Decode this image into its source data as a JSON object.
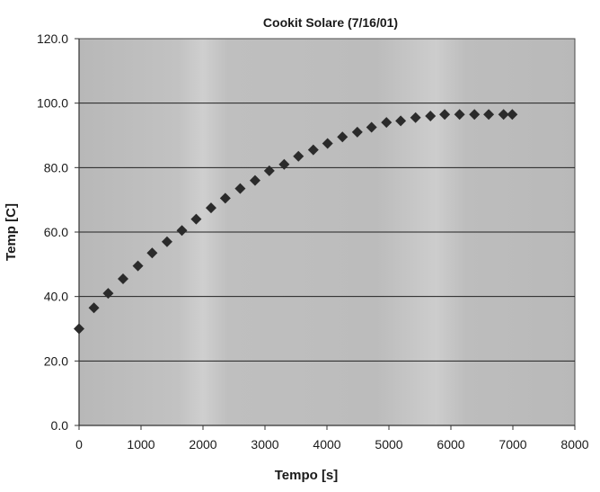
{
  "chart_data": {
    "type": "scatter",
    "title": "Cookit Solare (7/16/01)",
    "xlabel": "Tempo [s]",
    "ylabel": "Temp [C]",
    "xlim": [
      0,
      8000
    ],
    "ylim": [
      0,
      120
    ],
    "x_ticks": [
      0,
      1000,
      2000,
      3000,
      4000,
      5000,
      6000,
      7000,
      8000
    ],
    "y_ticks": [
      "0.0",
      "20.0",
      "40.0",
      "60.0",
      "80.0",
      "100.0",
      "120.0"
    ],
    "grid": "horizontal",
    "legend": "none",
    "marker": "diamond",
    "colors": {
      "plot_background": "#bdbdbd",
      "marker": "#2b2b2b",
      "gridline": "#222222",
      "axis": "#333333"
    },
    "points": [
      {
        "x": 0,
        "y": 30.0
      },
      {
        "x": 240,
        "y": 36.5
      },
      {
        "x": 470,
        "y": 41.0
      },
      {
        "x": 710,
        "y": 45.5
      },
      {
        "x": 950,
        "y": 49.5
      },
      {
        "x": 1180,
        "y": 53.5
      },
      {
        "x": 1420,
        "y": 57.0
      },
      {
        "x": 1660,
        "y": 60.5
      },
      {
        "x": 1890,
        "y": 64.0
      },
      {
        "x": 2130,
        "y": 67.5
      },
      {
        "x": 2360,
        "y": 70.5
      },
      {
        "x": 2600,
        "y": 73.5
      },
      {
        "x": 2840,
        "y": 76.0
      },
      {
        "x": 3070,
        "y": 79.0
      },
      {
        "x": 3310,
        "y": 81.0
      },
      {
        "x": 3540,
        "y": 83.5
      },
      {
        "x": 3780,
        "y": 85.5
      },
      {
        "x": 4010,
        "y": 87.5
      },
      {
        "x": 4250,
        "y": 89.5
      },
      {
        "x": 4490,
        "y": 91.0
      },
      {
        "x": 4720,
        "y": 92.5
      },
      {
        "x": 4960,
        "y": 94.0
      },
      {
        "x": 5190,
        "y": 94.5
      },
      {
        "x": 5430,
        "y": 95.5
      },
      {
        "x": 5670,
        "y": 96.0
      },
      {
        "x": 5900,
        "y": 96.5
      },
      {
        "x": 6140,
        "y": 96.5
      },
      {
        "x": 6380,
        "y": 96.5
      },
      {
        "x": 6610,
        "y": 96.5
      },
      {
        "x": 6850,
        "y": 96.5
      },
      {
        "x": 6990,
        "y": 96.5
      }
    ]
  }
}
